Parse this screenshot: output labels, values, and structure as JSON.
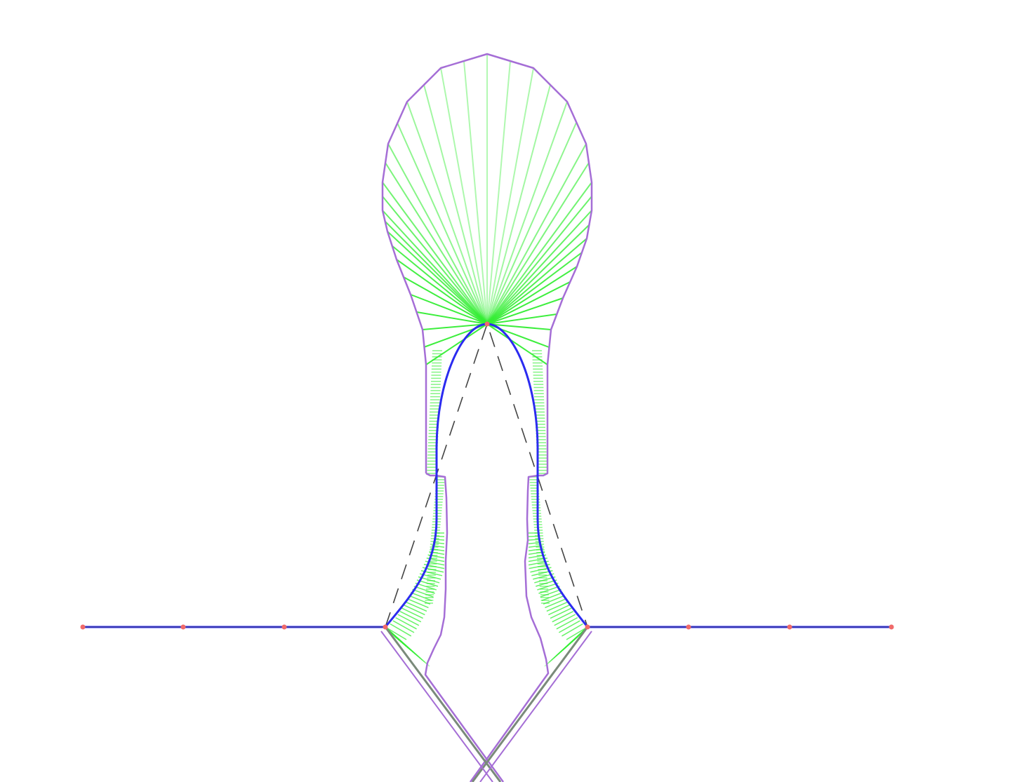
{
  "diagram": {
    "description_free": true,
    "colors": {
      "background": "#ffffff",
      "curve": "#2b2bf0",
      "control_polygon": "#444444",
      "control_point": "#f06a6a",
      "offset_boundary": "#a56ed6",
      "normal_fan": "#33ee33"
    }
  }
}
